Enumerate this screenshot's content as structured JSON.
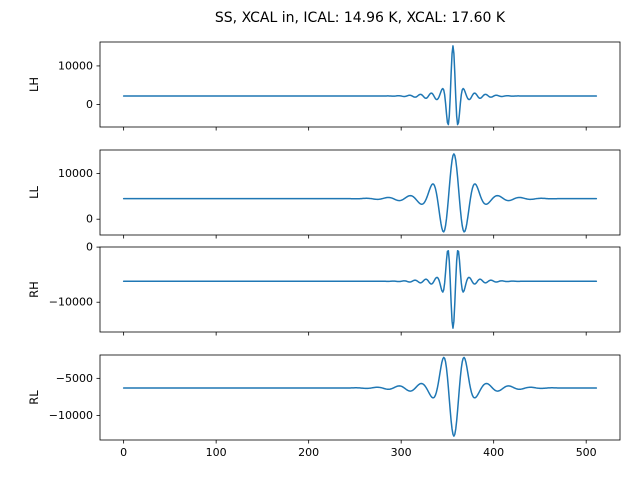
{
  "figure": {
    "background": "#ffffff"
  },
  "chart_data": {
    "type": "line",
    "title": "SS, XCAL in, ICAL: 14.96 K, XCAL: 17.60 K",
    "line_color": "#1f77b4",
    "grid": false,
    "legend": "none",
    "x": {
      "data_min": 0,
      "data_max": 511,
      "xlim": [
        -25.55,
        536.55
      ],
      "ticks": [
        {
          "value": 0,
          "label": "0"
        },
        {
          "value": 100,
          "label": "100"
        },
        {
          "value": 200,
          "label": "200"
        },
        {
          "value": 300,
          "label": "300"
        },
        {
          "value": 400,
          "label": "400"
        },
        {
          "value": 500,
          "label": "500"
        }
      ]
    },
    "n_points": 512,
    "subplots": [
      {
        "ylabel": "LH",
        "ylim": [
          -5835,
          16202
        ],
        "yticks": [
          {
            "value": 10000,
            "label": "10000"
          },
          {
            "value": 0,
            "label": "0"
          }
        ],
        "baseline": 2200,
        "peak_value": 15200,
        "trough_value": -4800,
        "waveform_model": {
          "shape": "gabor_burst",
          "center": 356,
          "amplitude": 13000,
          "freq": 0.085,
          "sigma_main": 5,
          "sigma_tail": 25,
          "tail_weight": 0.1
        }
      },
      {
        "ylabel": "LL",
        "ylim": [
          -3455,
          15145
        ],
        "yticks": [
          {
            "value": 10000,
            "label": "10000"
          },
          {
            "value": 0,
            "label": "0"
          }
        ],
        "baseline": 4500,
        "peak_value": 14300,
        "trough_value": -2600,
        "waveform_model": {
          "shape": "gabor_burst",
          "center": 357,
          "amplitude": 9800,
          "freq": 0.042,
          "sigma_main": 14,
          "sigma_tail": 40,
          "tail_weight": 0.15
        }
      },
      {
        "ylabel": "RH",
        "ylim": [
          -15401,
          18
        ],
        "yticks": [
          {
            "value": 0,
            "label": "0"
          },
          {
            "value": -10000,
            "label": "−10000"
          }
        ],
        "baseline": -6200,
        "peak_value": -700,
        "trough_value": -14700,
        "waveform_model": {
          "shape": "gabor_burst",
          "center": 356,
          "amplitude": -8500,
          "freq": 0.085,
          "sigma_main": 6,
          "sigma_tail": 25,
          "tail_weight": 0.1
        }
      },
      {
        "ylabel": "RL",
        "ylim": [
          -13322,
          -1848
        ],
        "yticks": [
          {
            "value": -5000,
            "label": "−5000"
          },
          {
            "value": -10000,
            "label": "−10000"
          }
        ],
        "baseline": -6300,
        "peak_value": -2400,
        "trough_value": -12800,
        "waveform_model": {
          "shape": "gabor_burst",
          "center": 357,
          "amplitude": -6500,
          "freq": 0.042,
          "sigma_main": 11,
          "sigma_tail": 40,
          "tail_weight": 0.15
        }
      }
    ]
  }
}
